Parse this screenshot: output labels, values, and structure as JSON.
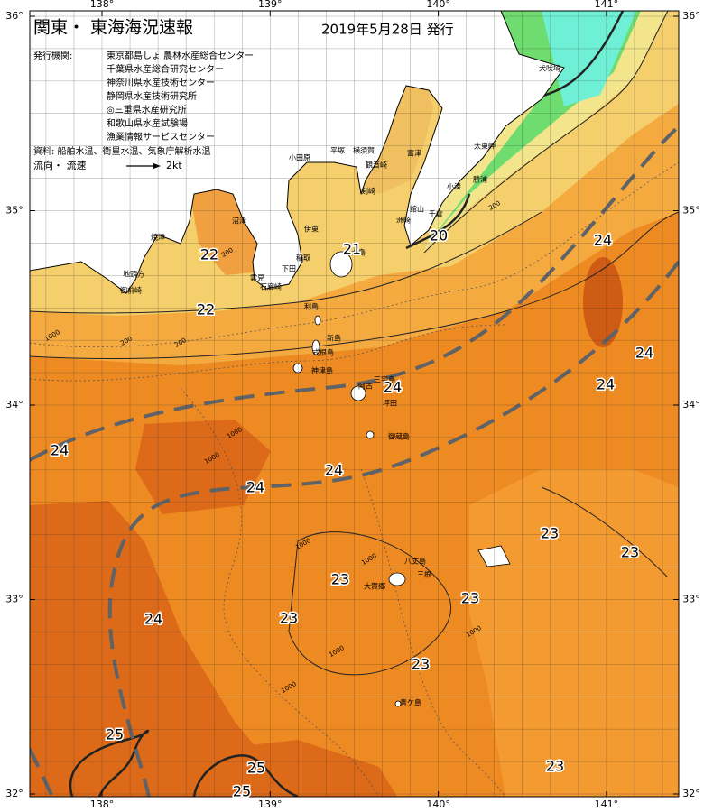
{
  "header": {
    "title": "関東・ 東海海況速報",
    "date": "2019年5月28日 発行"
  },
  "issuers": {
    "label": "発行機関:",
    "list": [
      "東京都島しょ 農林水産総合センター",
      "千葉県水産総合研究センター",
      "神奈川県水産技術センター",
      "静岡県水産技術研究所",
      "◎三重県水産研究所",
      "和歌山県水産試験場",
      "漁業情報サービスセンター"
    ]
  },
  "sources": "資料: 船舶水温、衛星水温、気象庁解析水温",
  "legend": {
    "label": "流向・ 流速",
    "speed": "2kt"
  },
  "axes": {
    "lon": [
      {
        "value": 138,
        "label": "138°"
      },
      {
        "value": 139,
        "label": "139°"
      },
      {
        "value": 140,
        "label": "140°"
      },
      {
        "value": 141,
        "label": "141°"
      }
    ],
    "lat": [
      {
        "value": 36,
        "label": "36°"
      },
      {
        "value": 35,
        "label": "35°"
      },
      {
        "value": 34,
        "label": "34°"
      },
      {
        "value": 33,
        "label": "33°"
      },
      {
        "value": 32,
        "label": "32°"
      }
    ]
  },
  "temperature_labels": [
    22,
    22,
    21,
    20,
    24,
    24,
    24,
    24,
    24,
    24,
    24,
    23,
    23,
    23,
    23,
    23,
    24,
    23,
    25,
    25,
    25,
    23
  ],
  "places": [
    "犬吠埼",
    "太東岬",
    "勝浦",
    "小湊",
    "千倉",
    "館山",
    "洲崎",
    "富津",
    "観音崎",
    "横須賀",
    "平塚",
    "小田原",
    "剣崎",
    "伊東",
    "稲取",
    "下田",
    "雲見",
    "石廊崎",
    "沼津",
    "焼津",
    "地頭方",
    "御前崎",
    "利島",
    "新島",
    "式根島",
    "神津島",
    "三宅島",
    "阿古",
    "坪田",
    "御蔵島",
    "八丈島",
    "三根",
    "大賀郷",
    "青ケ島",
    "大島"
  ],
  "depth_labels": [
    200,
    200,
    200,
    1000,
    200,
    1000,
    1000,
    1000,
    1000,
    1000,
    1000,
    1000
  ]
}
